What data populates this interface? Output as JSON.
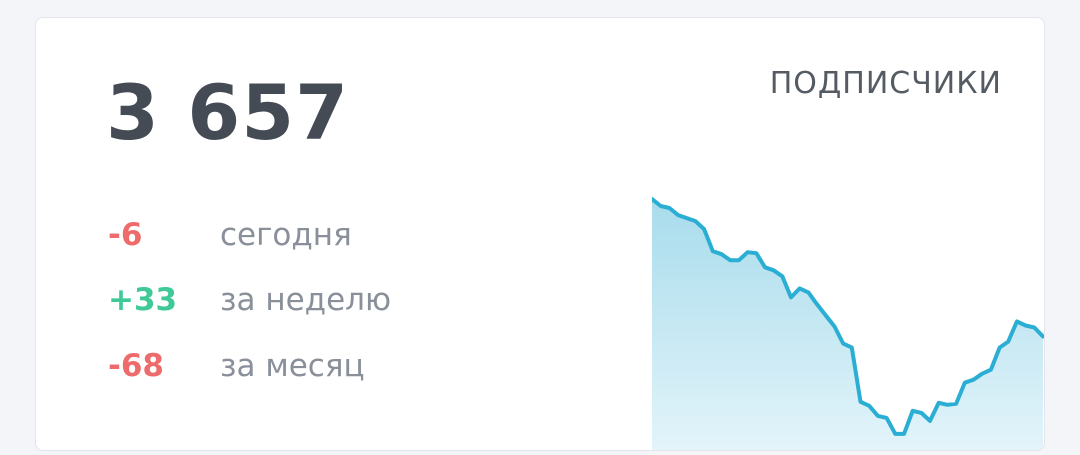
{
  "card": {
    "total": "3 657",
    "title": "ПОДПИСЧИКИ",
    "stats": [
      {
        "value": "-6",
        "label": "сегодня",
        "color": "#ee6b6b"
      },
      {
        "value": "+33",
        "label": "за неделю",
        "color": "#3ec996"
      },
      {
        "value": "-68",
        "label": "за месяц",
        "color": "#ee6b6b"
      }
    ]
  },
  "chart_data": {
    "type": "area",
    "title": "",
    "xlabel": "",
    "ylabel": "",
    "line_color": "#2aaed3",
    "fill_color": "#a8dcec",
    "grid": false,
    "ylim": [
      0,
      250
    ],
    "values": [
      250,
      243,
      241,
      234,
      231,
      228,
      220,
      198,
      195,
      189,
      189,
      197,
      196,
      182,
      179,
      173,
      152,
      161,
      157,
      145,
      134,
      123,
      106,
      102,
      48,
      44,
      34,
      32,
      16,
      16,
      39,
      37,
      29,
      47,
      45,
      46,
      67,
      70,
      76,
      80,
      102,
      108,
      128,
      124,
      122,
      113
    ]
  }
}
